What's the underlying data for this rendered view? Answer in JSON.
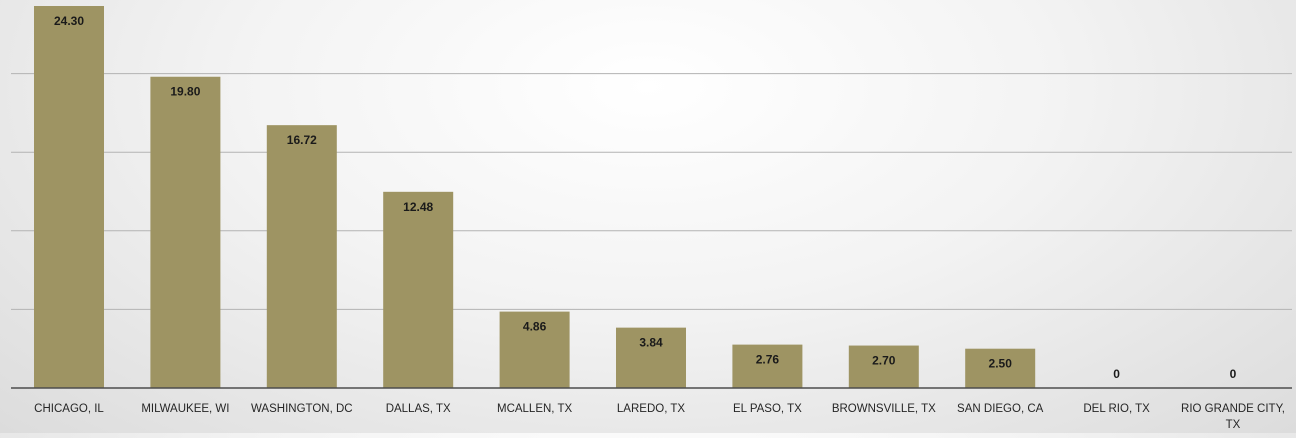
{
  "colors": {
    "bar": "#9e9463",
    "gridline": "#b3b3b3",
    "axis": "#4d4d4d"
  },
  "chart_data": {
    "type": "bar",
    "categories": [
      "CHICAGO, IL",
      "MILWAUKEE, WI",
      "WASHINGTON, DC",
      "DALLAS, TX",
      "MCALLEN, TX",
      "LAREDO, TX",
      "EL PASO, TX",
      "BROWNSVILLE, TX",
      "SAN DIEGO, CA",
      "DEL RIO, TX",
      "RIO GRANDE CITY, TX"
    ],
    "values": [
      24.3,
      19.8,
      16.72,
      12.48,
      4.86,
      3.84,
      2.76,
      2.7,
      2.5,
      0,
      0
    ],
    "data_labels": [
      "24.30",
      "19.80",
      "16.72",
      "12.48",
      "4.86",
      "3.84",
      "2.76",
      "2.70",
      "2.50",
      "0",
      "0"
    ],
    "ylim": [
      0,
      25
    ],
    "y_gridlines": [
      5,
      10,
      15,
      20
    ],
    "grid": true,
    "legend": false
  }
}
